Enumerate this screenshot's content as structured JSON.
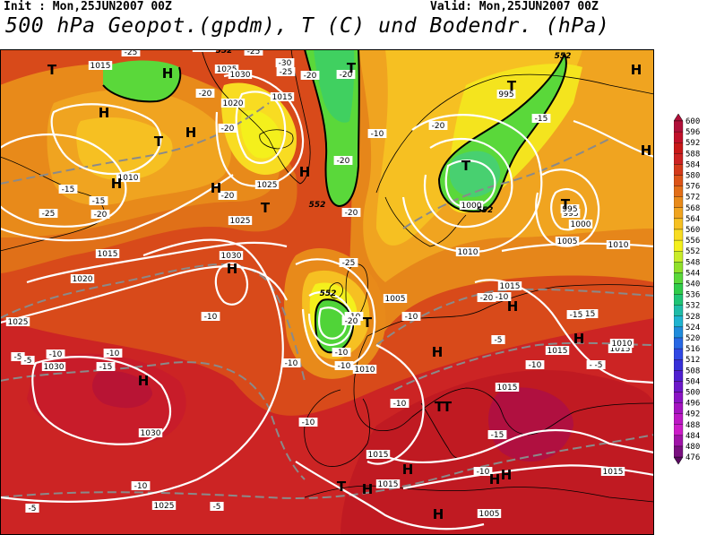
{
  "header": {
    "init": "Init : Mon,25JUN2007 00Z",
    "valid": "Valid: Mon,25JUN2007 00Z",
    "title": "500 hPa Geopot.(gpdm), T (C) und Bodendr. (hPa)"
  },
  "colorbar": {
    "levels": [
      "600",
      "596",
      "592",
      "588",
      "584",
      "580",
      "576",
      "572",
      "568",
      "564",
      "560",
      "556",
      "552",
      "548",
      "544",
      "540",
      "536",
      "532",
      "528",
      "524",
      "520",
      "516",
      "512",
      "508",
      "504",
      "500",
      "496",
      "492",
      "488",
      "484",
      "480",
      "476"
    ],
    "colors": [
      "#b0103a",
      "#c0102a",
      "#c81818",
      "#cc2222",
      "#d43a1a",
      "#dc5418",
      "#e26e18",
      "#e88a1a",
      "#f0a420",
      "#f6c022",
      "#f8dc22",
      "#f4f01c",
      "#c8ec2a",
      "#90e02a",
      "#5ad83a",
      "#30cc4a",
      "#20c476",
      "#20bca8",
      "#20b4d0",
      "#208cdc",
      "#2868e4",
      "#3048e4",
      "#3830d8",
      "#5020d0",
      "#6c18c8",
      "#8a14c4",
      "#a414c0",
      "#bc18c4",
      "#cc1cc8",
      "#a014a8",
      "#7a1080",
      "#5a0a60"
    ]
  },
  "map": {
    "pressure_labels": [
      {
        "text": "1015",
        "id": "p1"
      },
      {
        "text": "1020",
        "id": "p2"
      },
      {
        "text": "1025",
        "id": "p3"
      },
      {
        "text": "1030",
        "id": "p4"
      },
      {
        "text": "1020",
        "id": "p5"
      },
      {
        "text": "1015",
        "id": "p6"
      },
      {
        "text": "1010",
        "id": "p7"
      },
      {
        "text": "1025",
        "id": "p8"
      },
      {
        "text": "1025",
        "id": "p9"
      },
      {
        "text": "1030",
        "id": "p10"
      },
      {
        "text": "1015",
        "id": "p11"
      },
      {
        "text": "1020",
        "id": "p12"
      },
      {
        "text": "1025",
        "id": "p13"
      },
      {
        "text": "1030",
        "id": "p14"
      },
      {
        "text": "1030",
        "id": "p15"
      },
      {
        "text": "1025",
        "id": "p16"
      },
      {
        "text": "1005",
        "id": "p17"
      },
      {
        "text": "1010",
        "id": "p18"
      },
      {
        "text": "1015",
        "id": "p19"
      },
      {
        "text": "1015",
        "id": "p20"
      },
      {
        "text": "1015",
        "id": "p21"
      },
      {
        "text": "1010",
        "id": "p22"
      },
      {
        "text": "995",
        "id": "p23"
      },
      {
        "text": "995",
        "id": "p24"
      },
      {
        "text": "1000",
        "id": "p25"
      },
      {
        "text": "1005",
        "id": "p26"
      },
      {
        "text": "1010",
        "id": "p27"
      },
      {
        "text": "1015",
        "id": "p28"
      },
      {
        "text": "1015",
        "id": "p29"
      },
      {
        "text": "1015",
        "id": "p30"
      },
      {
        "text": "1005",
        "id": "p31"
      },
      {
        "text": "1010",
        "id": "p32"
      },
      {
        "text": "1015",
        "id": "p33"
      },
      {
        "text": "1000",
        "id": "p34"
      },
      {
        "text": "995",
        "id": "p35"
      }
    ],
    "temp_labels": [
      "-25",
      "-25",
      "-30",
      "-25",
      "-20",
      "-20",
      "-20",
      "-20",
      "-20",
      "-15",
      "-15",
      "-20",
      "-25",
      "-20",
      "-20",
      "-10",
      "-20",
      "-15",
      "-20",
      "-15",
      "-15",
      "-10",
      "-10",
      "-10",
      "-10",
      "-10",
      "-10",
      "-10",
      "-15",
      "-10",
      "-10",
      "-15",
      "-5",
      "-10",
      "-5",
      "-5",
      "-5",
      "-5",
      "-10",
      "-15",
      "-10",
      "-10",
      "-20",
      "-25",
      "-10",
      "-5"
    ],
    "geopot_labels": [
      "552",
      "552",
      "552",
      "552",
      "552"
    ],
    "centers": [
      "T",
      "H",
      "H",
      "H",
      "H",
      "T",
      "H",
      "T",
      "H",
      "T",
      "H",
      "H",
      "T",
      "T",
      "H",
      "T",
      "T",
      "H",
      "H",
      "H",
      "T",
      "H",
      "H",
      "T",
      "H",
      "H",
      "H",
      "H",
      "T"
    ]
  }
}
